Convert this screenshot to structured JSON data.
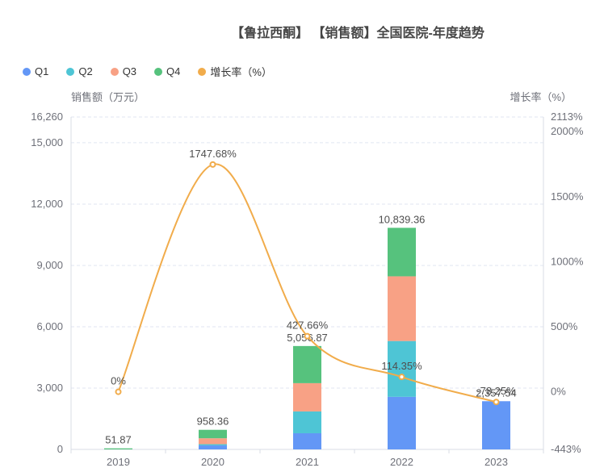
{
  "title": "【鲁拉西酮】 【销售额】全国医院-年度趋势",
  "legend": [
    {
      "label": "Q1",
      "color": "#6397f6"
    },
    {
      "label": "Q2",
      "color": "#4ec5d5"
    },
    {
      "label": "Q3",
      "color": "#f8a185"
    },
    {
      "label": "Q4",
      "color": "#56c27d"
    },
    {
      "label": "增长率（%）",
      "color": "#f1ac4b"
    }
  ],
  "colors": {
    "grid_line": "#E0E6F1",
    "axis_line": "#d8dce5",
    "tick_label": "#6E7079",
    "value_label": "#4f4f4f",
    "title": "#464646",
    "line": "#f1ac4b",
    "marker_fill": "#ffffff"
  },
  "chart_data": {
    "type": "bar",
    "subtype": "stacked-bar-with-line",
    "title": "【鲁拉西酮】 【销售额】全国医院-年度趋势",
    "categories": [
      "2019",
      "2020",
      "2021",
      "2022",
      "2023"
    ],
    "series": [
      {
        "name": "Q1",
        "type": "bar",
        "color": "#6397f6",
        "values": [
          0,
          195,
          790,
          2572,
          2357.54
        ]
      },
      {
        "name": "Q2",
        "type": "bar",
        "color": "#4ec5d5",
        "values": [
          0,
          60,
          1067,
          2730,
          0
        ]
      },
      {
        "name": "Q3",
        "type": "bar",
        "color": "#f8a185",
        "values": [
          0,
          290,
          1383,
          3165,
          0
        ]
      },
      {
        "name": "Q4",
        "type": "bar",
        "color": "#56c27d",
        "values": [
          51.87,
          413.36,
          1816.87,
          2372.36,
          0
        ]
      },
      {
        "name": "增长率（%）",
        "type": "line",
        "color": "#f1ac4b",
        "values": [
          0,
          1747.68,
          427.66,
          114.35,
          -78.25
        ],
        "labels": [
          "0%",
          "1747.68%",
          "427.66%",
          "114.35%",
          "-78.25%"
        ]
      }
    ],
    "bar_totals": [
      51.87,
      958.36,
      5056.87,
      10839.36,
      2357.54
    ],
    "bar_total_labels": [
      "51.87",
      "958.36",
      "5,056.87",
      "10,839.36",
      "2,357.54"
    ],
    "left_axis": {
      "name": "销售额（万元）",
      "tick_labels": [
        "0",
        "3,000",
        "6,000",
        "9,000",
        "12,000",
        "15,000",
        "16,260"
      ],
      "tick_values": [
        0,
        3000,
        6000,
        9000,
        12000,
        15000,
        16260
      ],
      "min": 0,
      "max": 16260,
      "grid": "dashed"
    },
    "right_axis": {
      "name": "增长率（%）",
      "tick_labels": [
        "-443%",
        "0%",
        "500%",
        "1000%",
        "1500%",
        "2000%",
        "2113%"
      ],
      "tick_values": [
        -443,
        0,
        500,
        1000,
        1500,
        2000,
        2113
      ],
      "min": -443,
      "max": 2113,
      "grid": "none"
    },
    "legend_position": "top-left",
    "x_tick_marks": "between-categories"
  }
}
